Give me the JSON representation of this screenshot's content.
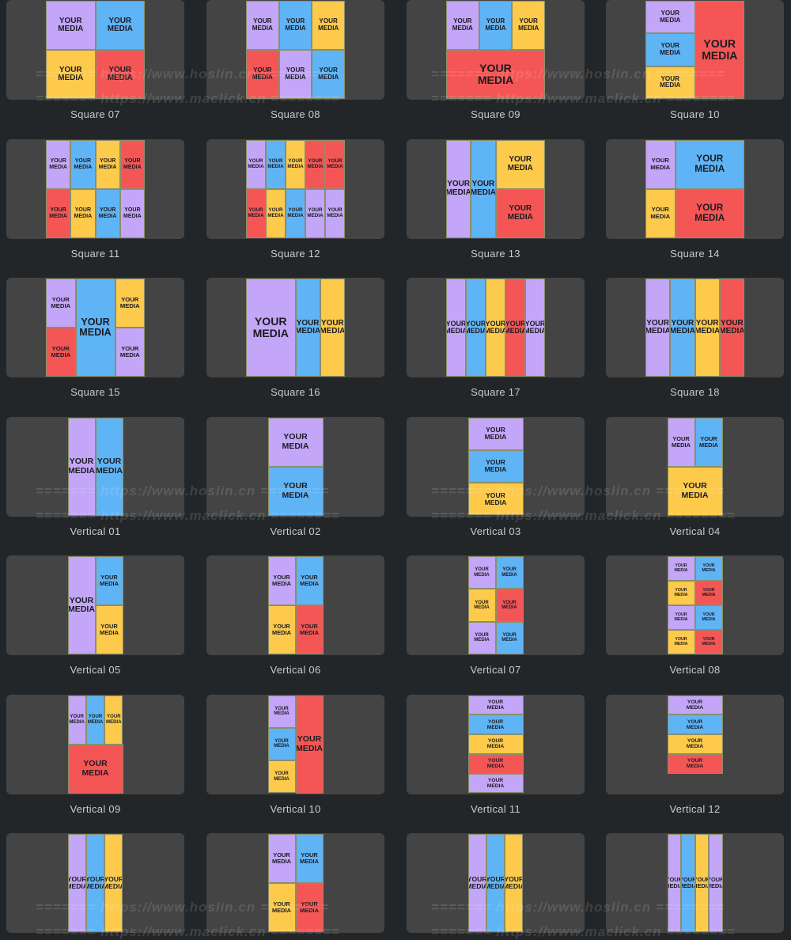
{
  "cards": [
    {
      "label": "Square 07"
    },
    {
      "label": "Square 08"
    },
    {
      "label": "Square 09"
    },
    {
      "label": "Square 10"
    },
    {
      "label": "Square 11"
    },
    {
      "label": "Square 12"
    },
    {
      "label": "Square 13"
    },
    {
      "label": "Square 14"
    },
    {
      "label": "Square 15"
    },
    {
      "label": "Square 16"
    },
    {
      "label": "Square 17"
    },
    {
      "label": "Square 18"
    },
    {
      "label": "Vertical 01"
    },
    {
      "label": "Vertical 02"
    },
    {
      "label": "Vertical 03"
    },
    {
      "label": "Vertical 04"
    },
    {
      "label": "Vertical 05"
    },
    {
      "label": "Vertical 06"
    },
    {
      "label": "Vertical 07"
    },
    {
      "label": "Vertical 08"
    },
    {
      "label": "Vertical 09"
    },
    {
      "label": "Vertical 10"
    },
    {
      "label": "Vertical 11"
    },
    {
      "label": "Vertical 12"
    }
  ],
  "tile_text": "YOUR MEDIA",
  "watermarks": [
    "======= https://www.hoslin.cn ========",
    "======= https://www.maclick.cn ========"
  ]
}
